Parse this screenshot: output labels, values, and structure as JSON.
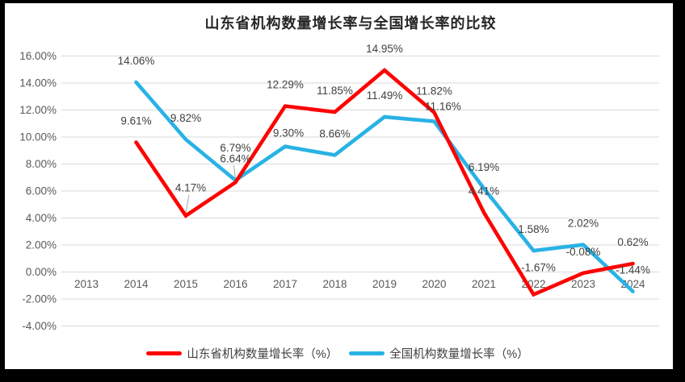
{
  "title": "山东省机构数量增长率与全国增长率的比较",
  "legend": {
    "items": [
      {
        "label": "山东省机构数量增长率（%）",
        "color": "#FE0000"
      },
      {
        "label": "全国机构数量增长率（%）",
        "color": "#29B2E5"
      }
    ]
  },
  "colors": {
    "frame": "#000000",
    "background": "#FFFFFF",
    "gridline": "#D9D9D9",
    "axis_text": "#595959",
    "label_text": "#404040",
    "leader_line": "#A6A6A6"
  },
  "chart_data": {
    "type": "line",
    "title": "山东省机构数量增长率与全国增长率的比较",
    "categories": [
      "2013",
      "2014",
      "2015",
      "2016",
      "2017",
      "2018",
      "2019",
      "2020",
      "2021",
      "2022",
      "2023",
      "2024"
    ],
    "grid": true,
    "legend_position": "bottom",
    "y_axis": {
      "range": [
        -4,
        16
      ],
      "tick_values": [
        16,
        14,
        12,
        10,
        8,
        6,
        4,
        2,
        0,
        -2,
        -4
      ],
      "tick_labels": [
        "16.00%",
        "14.00%",
        "12.00%",
        "10.00%",
        "8.00%",
        "6.00%",
        "4.00%",
        "2.00%",
        "0.00%",
        "-2.00%",
        "-4.00%"
      ]
    },
    "series": [
      {
        "name": "山东省机构数量增长率（%）",
        "key": "shandong",
        "color": "#FE0000",
        "values": [
          null,
          9.61,
          4.17,
          6.64,
          12.29,
          11.85,
          14.95,
          11.82,
          4.41,
          -1.67,
          -0.08,
          0.62
        ],
        "labels": [
          "",
          "9.61%",
          "4.17%",
          "6.64%",
          "12.29%",
          "11.85%",
          "14.95%",
          "11.82%",
          "4.41%",
          "-1.67%",
          "-0.08%",
          "0.62%"
        ]
      },
      {
        "name": "全国机构数量增长率（%）",
        "key": "national",
        "color": "#29B2E5",
        "values": [
          null,
          14.06,
          9.82,
          6.79,
          9.3,
          8.66,
          11.49,
          11.16,
          6.19,
          1.58,
          2.02,
          -1.44
        ],
        "labels": [
          "",
          "14.06%",
          "9.82%",
          "6.79%",
          "9.30%",
          "8.66%",
          "11.49%",
          "11.16%",
          "6.19%",
          "1.58%",
          "2.02%",
          "-1.44%"
        ]
      }
    ]
  }
}
